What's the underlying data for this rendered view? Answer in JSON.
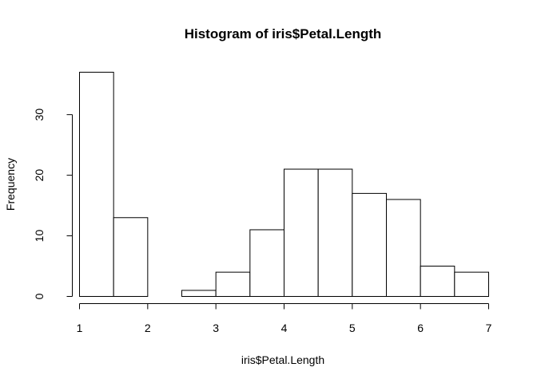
{
  "chart_data": {
    "type": "bar",
    "title": "Histogram of iris$Petal.Length",
    "xlabel": "iris$Petal.Length",
    "ylabel": "Frequency",
    "bins": [
      {
        "x0": 1.0,
        "x1": 1.5,
        "count": 37
      },
      {
        "x0": 1.5,
        "x1": 2.0,
        "count": 13
      },
      {
        "x0": 2.0,
        "x1": 2.5,
        "count": 0
      },
      {
        "x0": 2.5,
        "x1": 3.0,
        "count": 1
      },
      {
        "x0": 3.0,
        "x1": 3.5,
        "count": 4
      },
      {
        "x0": 3.5,
        "x1": 4.0,
        "count": 11
      },
      {
        "x0": 4.0,
        "x1": 4.5,
        "count": 21
      },
      {
        "x0": 4.5,
        "x1": 5.0,
        "count": 21
      },
      {
        "x0": 5.0,
        "x1": 5.5,
        "count": 17
      },
      {
        "x0": 5.5,
        "x1": 6.0,
        "count": 16
      },
      {
        "x0": 6.0,
        "x1": 6.5,
        "count": 5
      },
      {
        "x0": 6.5,
        "x1": 7.0,
        "count": 4
      }
    ],
    "xlim": [
      1,
      7
    ],
    "ylim": [
      0,
      37
    ],
    "xticks": [
      1,
      2,
      3,
      4,
      5,
      6,
      7
    ],
    "yticks": [
      0,
      10,
      20,
      30
    ],
    "grid": false,
    "bar_fill": "#ffffff",
    "bar_stroke": "#000000"
  }
}
